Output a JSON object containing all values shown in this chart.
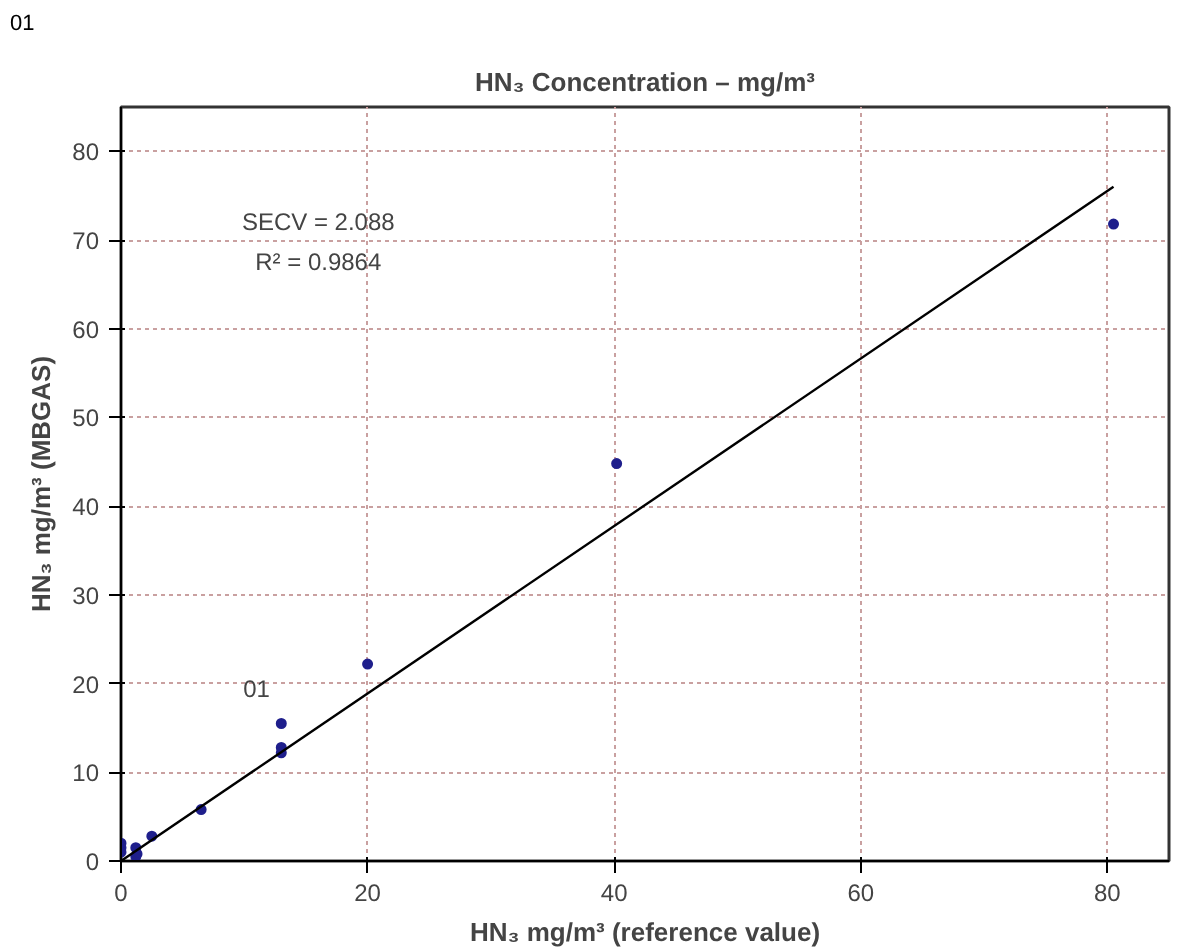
{
  "chart_data": {
    "type": "scatter",
    "title": "HN₃ Concentration – mg/m³",
    "xlabel": "HN₃ mg/m³ (reference value)",
    "ylabel": "HN₃ mg/m³ (MBGAS)",
    "annotations": [
      "01",
      "SECV = 2.088",
      "R² = 0.9864",
      "01"
    ],
    "series": [
      {
        "color": "#1f1f8c",
        "x": [
          0,
          0,
          0,
          1.2,
          1.2,
          1.3,
          2.5,
          6.5,
          13,
          13,
          13,
          20,
          40.2,
          80.5
        ],
        "values": [
          2,
          1.5,
          1,
          0.5,
          1.5,
          0.8,
          2.8,
          5.8,
          15.5,
          12.8,
          12.2,
          22.2,
          44.8,
          71.8
        ]
      },
      {
        "type": "line",
        "marker": "none",
        "color": "#000000",
        "x": [
          0,
          80.5
        ],
        "values": [
          0,
          76
        ]
      }
    ],
    "marker": "circle",
    "xlim": [
      0,
      85
    ],
    "ylim": [
      0,
      85
    ],
    "xticks": [
      0,
      20,
      40,
      60,
      80
    ],
    "yticks": [
      0,
      10,
      20,
      30,
      40,
      50,
      60,
      70,
      80
    ],
    "grid": true
  }
}
